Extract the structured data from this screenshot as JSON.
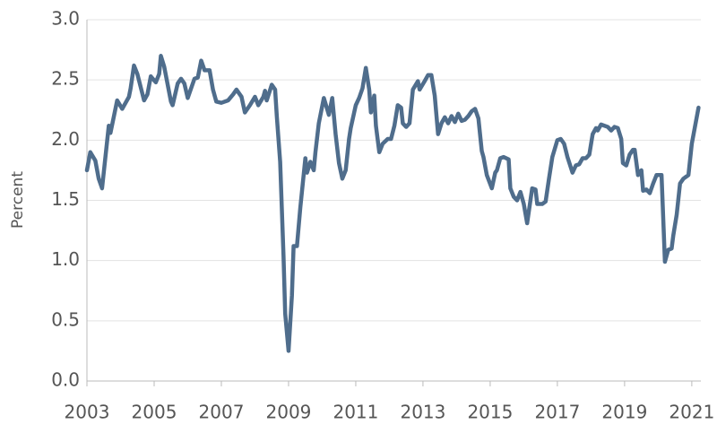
{
  "chart_data": {
    "type": "line",
    "y_label": "Percent",
    "x": [
      2003.0,
      2003.1,
      2003.25,
      2003.35,
      2003.45,
      2003.55,
      2003.65,
      2003.7,
      2003.9,
      2004.05,
      2004.25,
      2004.3,
      2004.4,
      2004.5,
      2004.7,
      2004.8,
      2004.9,
      2005.05,
      2005.15,
      2005.2,
      2005.3,
      2005.5,
      2005.55,
      2005.7,
      2005.8,
      2005.9,
      2006.0,
      2006.1,
      2006.2,
      2006.3,
      2006.4,
      2006.5,
      2006.65,
      2006.75,
      2006.85,
      2007.0,
      2007.2,
      2007.35,
      2007.45,
      2007.55,
      2007.6,
      2007.7,
      2007.85,
      2008.0,
      2008.1,
      2008.25,
      2008.3,
      2008.35,
      2008.5,
      2008.6,
      2008.65,
      2008.75,
      2008.85,
      2008.9,
      2009.0,
      2009.1,
      2009.15,
      2009.25,
      2009.35,
      2009.5,
      2009.55,
      2009.65,
      2009.75,
      2009.8,
      2009.9,
      2010.05,
      2010.2,
      2010.3,
      2010.4,
      2010.5,
      2010.6,
      2010.7,
      2010.8,
      2010.85,
      2011.0,
      2011.1,
      2011.2,
      2011.3,
      2011.4,
      2011.45,
      2011.55,
      2011.6,
      2011.7,
      2011.8,
      2011.95,
      2012.05,
      2012.15,
      2012.25,
      2012.35,
      2012.4,
      2012.5,
      2012.6,
      2012.7,
      2012.85,
      2012.9,
      2013.05,
      2013.15,
      2013.25,
      2013.35,
      2013.45,
      2013.55,
      2013.65,
      2013.75,
      2013.85,
      2013.95,
      2014.05,
      2014.15,
      2014.25,
      2014.35,
      2014.45,
      2014.55,
      2014.65,
      2014.75,
      2014.8,
      2014.9,
      2015.05,
      2015.15,
      2015.2,
      2015.3,
      2015.4,
      2015.55,
      2015.6,
      2015.7,
      2015.8,
      2015.9,
      2016.0,
      2016.1,
      2016.25,
      2016.35,
      2016.4,
      2016.55,
      2016.65,
      2016.75,
      2016.85,
      2017.0,
      2017.1,
      2017.2,
      2017.3,
      2017.45,
      2017.55,
      2017.65,
      2017.75,
      2017.85,
      2017.95,
      2018.05,
      2018.15,
      2018.2,
      2018.3,
      2018.4,
      2018.5,
      2018.6,
      2018.7,
      2018.8,
      2018.9,
      2018.95,
      2019.05,
      2019.15,
      2019.25,
      2019.3,
      2019.4,
      2019.5,
      2019.55,
      2019.65,
      2019.75,
      2019.85,
      2019.95,
      2020.1,
      2020.2,
      2020.3,
      2020.4,
      2020.45,
      2020.55,
      2020.65,
      2020.75,
      2020.85,
      2020.9,
      2021.0,
      2021.1,
      2021.2
    ],
    "series": [
      {
        "color": "#4f6d8c",
        "values": [
          1.75,
          1.9,
          1.83,
          1.68,
          1.6,
          1.86,
          2.12,
          2.06,
          2.33,
          2.26,
          2.36,
          2.43,
          2.62,
          2.55,
          2.33,
          2.38,
          2.53,
          2.48,
          2.55,
          2.7,
          2.61,
          2.32,
          2.29,
          2.47,
          2.51,
          2.47,
          2.35,
          2.43,
          2.51,
          2.52,
          2.66,
          2.58,
          2.58,
          2.42,
          2.32,
          2.31,
          2.33,
          2.38,
          2.42,
          2.38,
          2.36,
          2.23,
          2.29,
          2.36,
          2.29,
          2.36,
          2.41,
          2.33,
          2.46,
          2.42,
          2.2,
          1.82,
          1.04,
          0.56,
          0.25,
          0.71,
          1.12,
          1.12,
          1.44,
          1.85,
          1.73,
          1.82,
          1.75,
          1.9,
          2.14,
          2.35,
          2.21,
          2.35,
          2.05,
          1.81,
          1.68,
          1.75,
          2.01,
          2.1,
          2.29,
          2.35,
          2.43,
          2.6,
          2.42,
          2.23,
          2.37,
          2.12,
          1.9,
          1.97,
          2.01,
          2.01,
          2.12,
          2.29,
          2.27,
          2.14,
          2.11,
          2.14,
          2.42,
          2.49,
          2.42,
          2.49,
          2.54,
          2.54,
          2.37,
          2.05,
          2.14,
          2.19,
          2.14,
          2.2,
          2.15,
          2.22,
          2.16,
          2.17,
          2.2,
          2.24,
          2.26,
          2.18,
          1.91,
          1.86,
          1.71,
          1.6,
          1.73,
          1.75,
          1.85,
          1.86,
          1.84,
          1.6,
          1.53,
          1.5,
          1.57,
          1.47,
          1.31,
          1.6,
          1.59,
          1.47,
          1.47,
          1.49,
          1.68,
          1.86,
          2.0,
          2.01,
          1.97,
          1.86,
          1.73,
          1.79,
          1.8,
          1.85,
          1.85,
          1.88,
          2.05,
          2.1,
          2.08,
          2.13,
          2.12,
          2.11,
          2.08,
          2.11,
          2.1,
          2.01,
          1.81,
          1.79,
          1.88,
          1.92,
          1.92,
          1.71,
          1.75,
          1.58,
          1.59,
          1.56,
          1.64,
          1.71,
          1.71,
          0.99,
          1.09,
          1.1,
          1.21,
          1.38,
          1.64,
          1.68,
          1.7,
          1.71,
          1.97,
          2.12,
          2.27
        ]
      }
    ],
    "xlim": [
      2003,
      2021.27
    ],
    "xticks": [
      2003,
      2005,
      2007,
      2009,
      2011,
      2013,
      2015,
      2017,
      2019,
      2021
    ],
    "ylim": [
      0,
      3
    ],
    "yticks": [
      {
        "value": 0,
        "label": "0.0"
      },
      0.5,
      {
        "value": 1,
        "label": "1.0"
      },
      1.5,
      {
        "value": 2,
        "label": "2.0"
      },
      2.5,
      {
        "value": 3,
        "label": "3.0"
      }
    ],
    "grid": true
  }
}
